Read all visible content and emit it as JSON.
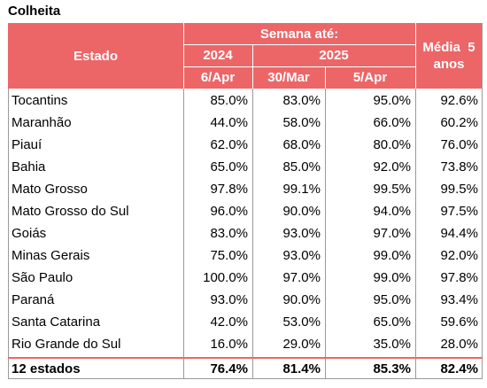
{
  "title": "Colheita",
  "header": {
    "estado": "Estado",
    "semana": "Semana até:",
    "year_2024": "2024",
    "year_2025": "2025",
    "media_line1": "Média  5",
    "media_line2": "anos",
    "date_6apr": "6/Apr",
    "date_30mar": "30/Mar",
    "date_5apr": "5/Apr"
  },
  "rows": [
    {
      "estado": "Tocantins",
      "v2024": "85.0%",
      "mar30": "83.0%",
      "apr5": "95.0%",
      "media": "92.6%"
    },
    {
      "estado": "Maranhão",
      "v2024": "44.0%",
      "mar30": "58.0%",
      "apr5": "66.0%",
      "media": "60.2%"
    },
    {
      "estado": "Piauí",
      "v2024": "62.0%",
      "mar30": "68.0%",
      "apr5": "80.0%",
      "media": "76.0%"
    },
    {
      "estado": "Bahia",
      "v2024": "65.0%",
      "mar30": "85.0%",
      "apr5": "92.0%",
      "media": "73.8%"
    },
    {
      "estado": "Mato Grosso",
      "v2024": "97.8%",
      "mar30": "99.1%",
      "apr5": "99.5%",
      "media": "99.5%"
    },
    {
      "estado": "Mato Grosso do Sul",
      "v2024": "96.0%",
      "mar30": "90.0%",
      "apr5": "94.0%",
      "media": "97.5%"
    },
    {
      "estado": "Goiás",
      "v2024": "83.0%",
      "mar30": "93.0%",
      "apr5": "97.0%",
      "media": "94.4%"
    },
    {
      "estado": "Minas Gerais",
      "v2024": "75.0%",
      "mar30": "93.0%",
      "apr5": "99.0%",
      "media": "92.0%"
    },
    {
      "estado": "São Paulo",
      "v2024": "100.0%",
      "mar30": "97.0%",
      "apr5": "99.0%",
      "media": "97.8%"
    },
    {
      "estado": "Paraná",
      "v2024": "93.0%",
      "mar30": "90.0%",
      "apr5": "95.0%",
      "media": "93.4%"
    },
    {
      "estado": "Santa Catarina",
      "v2024": "42.0%",
      "mar30": "53.0%",
      "apr5": "65.0%",
      "media": "59.6%"
    },
    {
      "estado": "Rio Grande do Sul",
      "v2024": "16.0%",
      "mar30": "29.0%",
      "apr5": "35.0%",
      "media": "28.0%"
    }
  ],
  "total": {
    "estado": "12 estados",
    "v2024": "76.4%",
    "mar30": "81.4%",
    "apr5": "85.3%",
    "media": "82.4%"
  },
  "colors": {
    "header_bg": "#ec6668",
    "header_text": "#ffffff",
    "grid": "#9a9a9a"
  }
}
